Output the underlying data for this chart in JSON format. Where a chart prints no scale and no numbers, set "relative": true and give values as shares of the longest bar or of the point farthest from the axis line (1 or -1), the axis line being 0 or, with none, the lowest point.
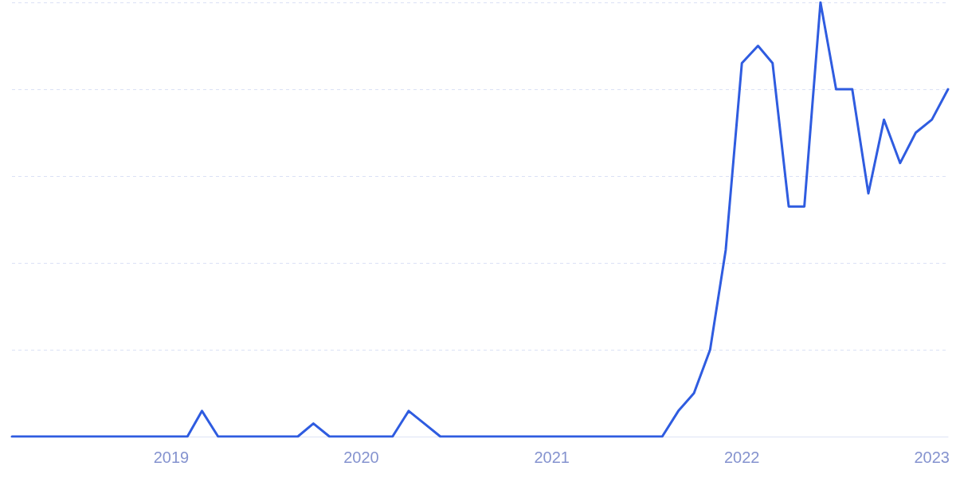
{
  "chart_data": {
    "type": "line",
    "relative": true,
    "x": [
      "2018-03",
      "2018-04",
      "2018-05",
      "2018-06",
      "2018-07",
      "2018-08",
      "2018-09",
      "2018-10",
      "2018-11",
      "2018-12",
      "2019-01",
      "2019-02",
      "2019-03",
      "2019-04",
      "2019-05",
      "2019-06",
      "2019-07",
      "2019-08",
      "2019-09",
      "2019-10",
      "2019-11",
      "2019-12",
      "2020-01",
      "2020-02",
      "2020-03",
      "2020-04",
      "2020-05",
      "2020-06",
      "2020-07",
      "2020-08",
      "2020-09",
      "2020-10",
      "2020-11",
      "2020-12",
      "2021-01",
      "2021-02",
      "2021-03",
      "2021-04",
      "2021-05",
      "2021-06",
      "2021-07",
      "2021-08",
      "2021-09",
      "2021-10",
      "2021-11",
      "2021-12",
      "2022-01",
      "2022-02",
      "2022-03",
      "2022-04",
      "2022-05",
      "2022-06",
      "2022-07",
      "2022-08",
      "2022-09",
      "2022-10",
      "2022-11",
      "2022-12",
      "2023-01",
      "2023-02"
    ],
    "series": [
      {
        "color": "#2f5ce0",
        "values": [
          0,
          0,
          0,
          0,
          0,
          0,
          0,
          0,
          0,
          0,
          0,
          0,
          0.059,
          0,
          0,
          0,
          0,
          0,
          0,
          0.03,
          0,
          0,
          0,
          0,
          0,
          0.059,
          0.03,
          0,
          0,
          0,
          0,
          0,
          0,
          0,
          0,
          0,
          0,
          0,
          0,
          0,
          0,
          0,
          0.059,
          0.1,
          0.2,
          0.43,
          0.86,
          0.9,
          0.86,
          0.53,
          0.53,
          1,
          0.8,
          0.8,
          0.56,
          0.73,
          0.63,
          0.7,
          0.73,
          0.8
        ]
      }
    ],
    "xlim": [
      "2018-03",
      "2023-02"
    ],
    "xticks": [
      "2019",
      "2020",
      "2021",
      "2022",
      "2023"
    ],
    "grid": "y",
    "marker": "none",
    "line_style": "solid"
  }
}
